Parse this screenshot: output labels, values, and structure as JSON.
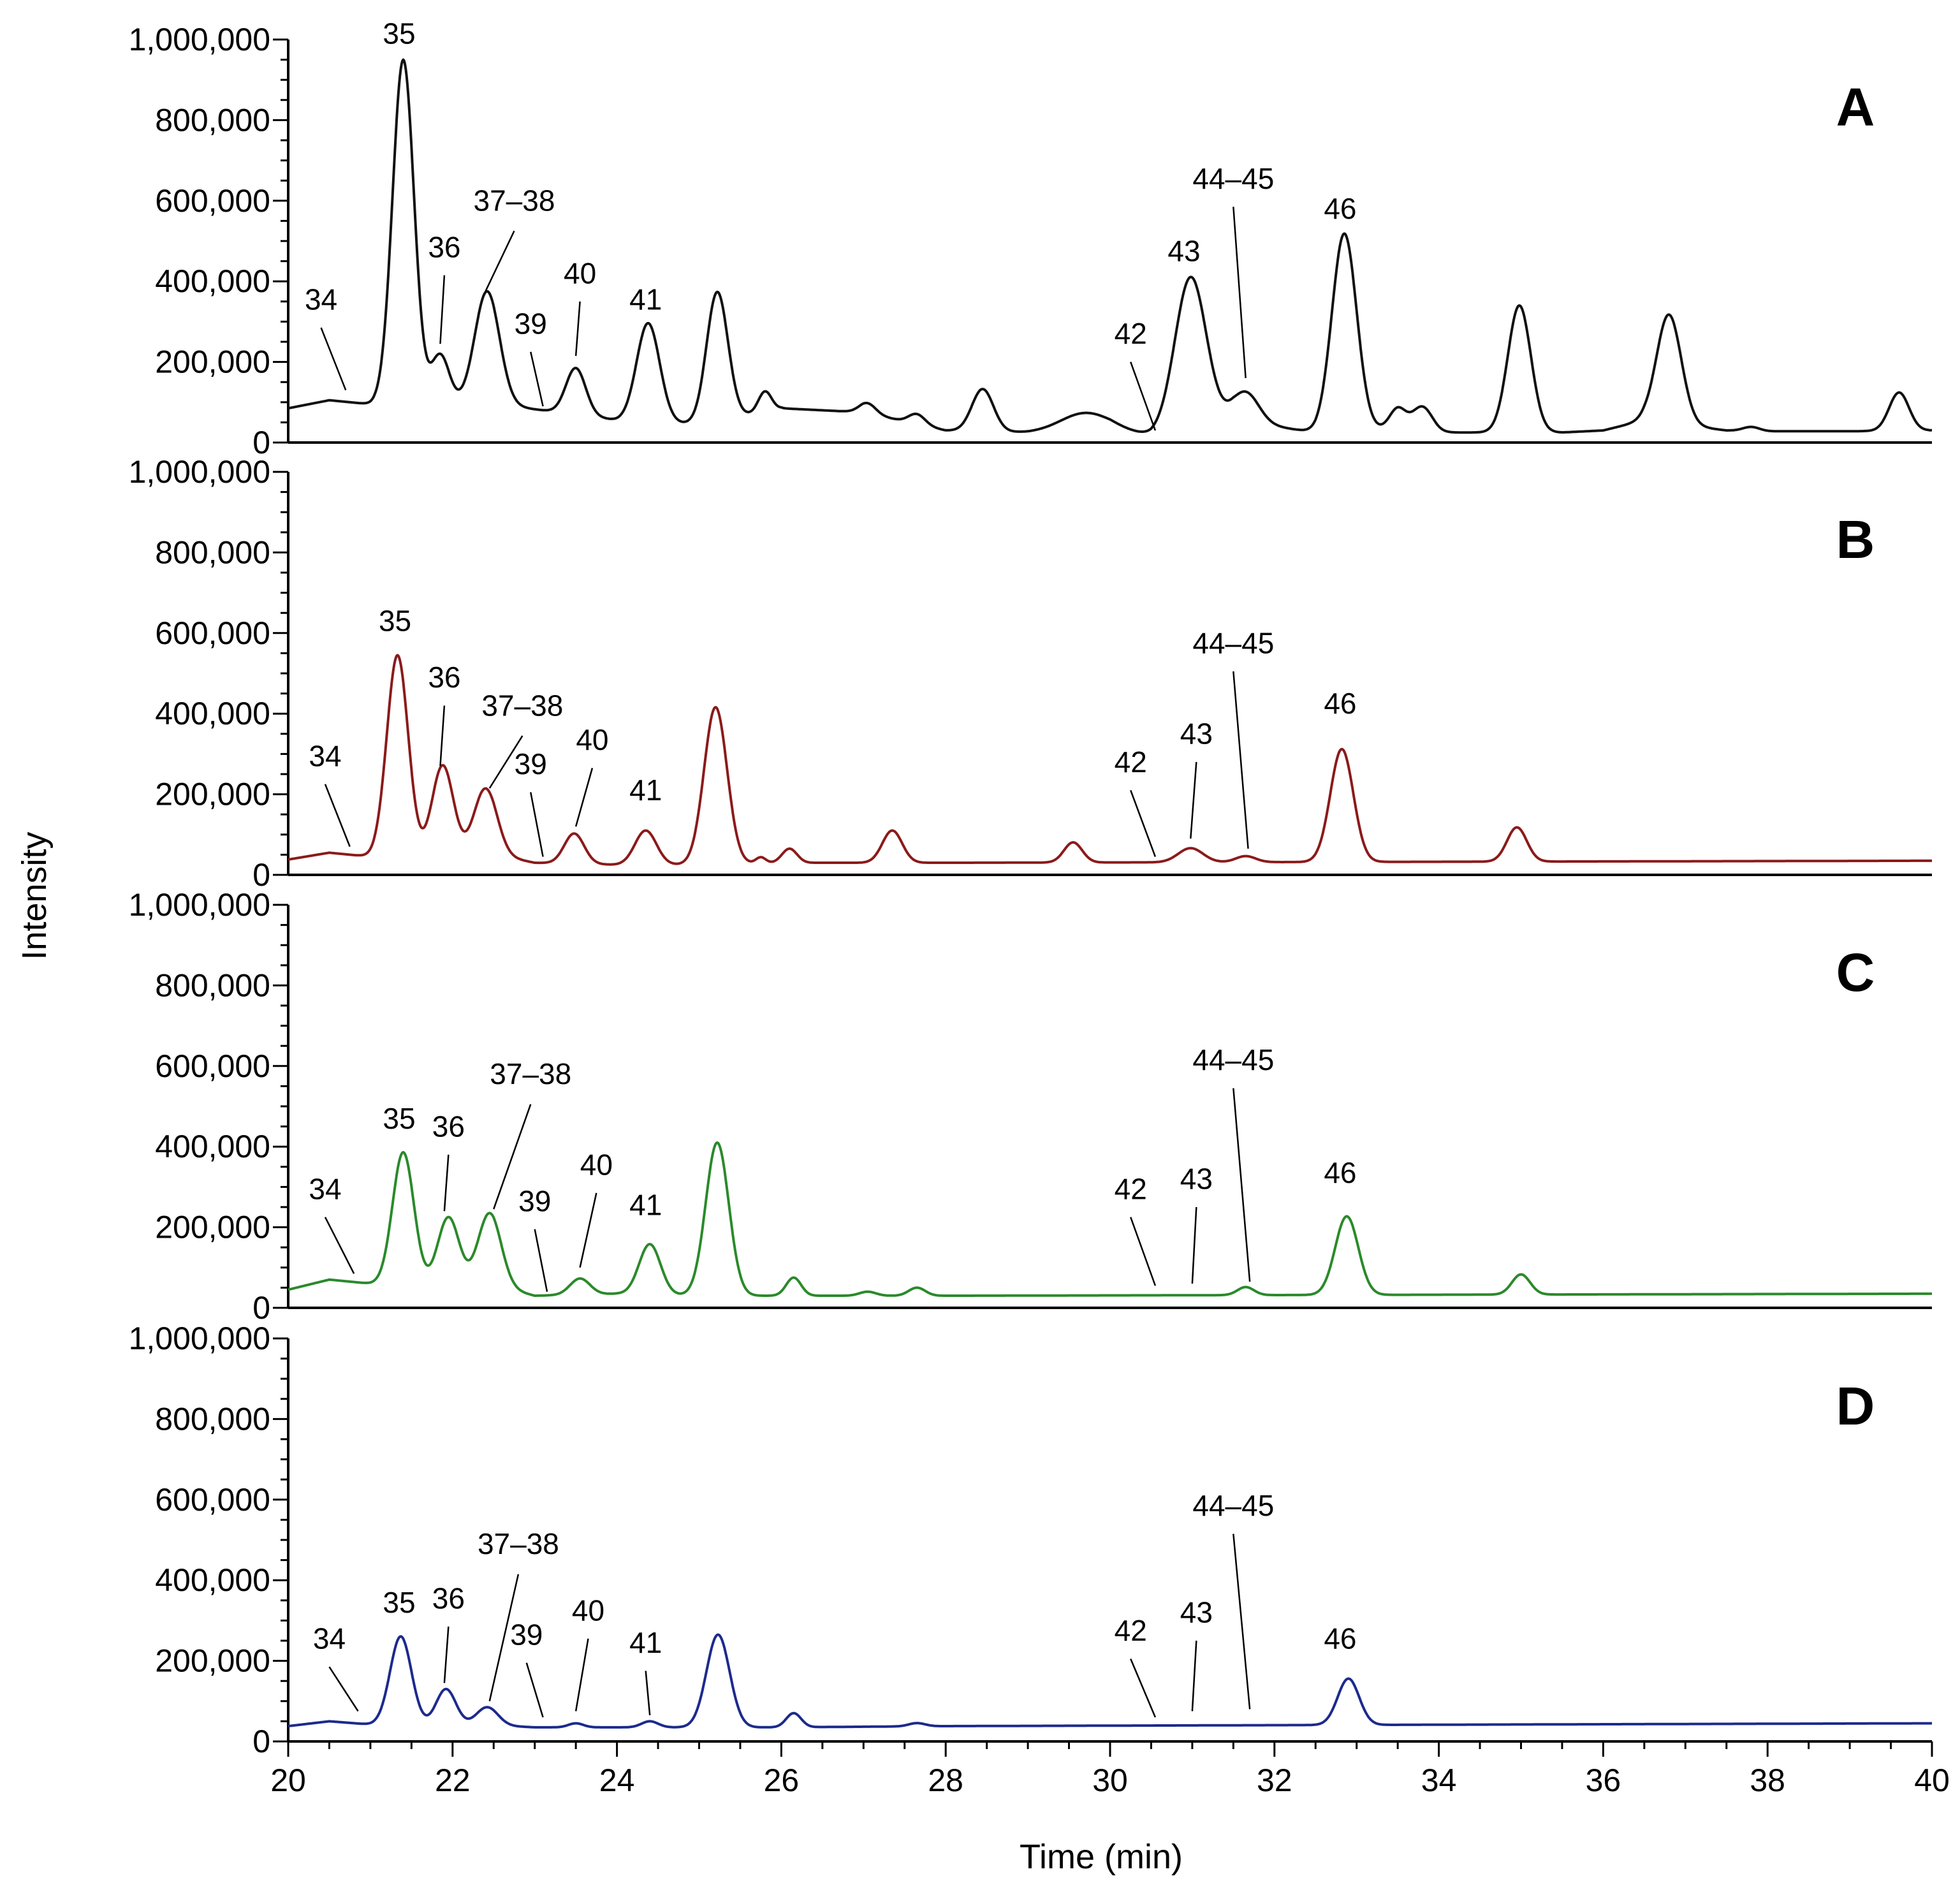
{
  "chart_data": {
    "type": "line",
    "xlabel": "Time (min)",
    "ylabel": "Intensity",
    "xlim": [
      20,
      40
    ],
    "x_ticks": [
      "20",
      "22",
      "24",
      "26",
      "28",
      "30",
      "32",
      "34",
      "36",
      "38",
      "40"
    ],
    "ylim": [
      0,
      1000000
    ],
    "y_ticks": [
      "0",
      "200,000",
      "400,000",
      "600,000",
      "800,000",
      "1,000,000"
    ],
    "panels": [
      {
        "id": "A",
        "color": "#111111",
        "baseline": [
          [
            20,
            85000
          ],
          [
            20.5,
            105000
          ],
          [
            21.0,
            95000
          ],
          [
            21.4,
            100000
          ],
          [
            22.5,
            95000
          ],
          [
            23.5,
            70000
          ],
          [
            24.0,
            55000
          ],
          [
            25.0,
            45000
          ],
          [
            26.0,
            85000
          ],
          [
            27.0,
            75000
          ],
          [
            28.0,
            30000
          ],
          [
            29.0,
            25000
          ],
          [
            30.0,
            30000
          ],
          [
            30.5,
            18000
          ],
          [
            31.5,
            55000
          ],
          [
            32.5,
            25000
          ],
          [
            33.5,
            35000
          ],
          [
            34.0,
            25000
          ],
          [
            35.5,
            25000
          ],
          [
            36.0,
            30000
          ],
          [
            36.5,
            55000
          ],
          [
            37.5,
            30000
          ],
          [
            38.0,
            28000
          ],
          [
            39.0,
            28000
          ],
          [
            40,
            30000
          ]
        ],
        "peaks": [
          [
            21.4,
            850000,
            0.13
          ],
          [
            21.85,
            120000,
            0.11
          ],
          [
            22.42,
            280000,
            0.15
          ],
          [
            23.5,
            115000,
            0.12
          ],
          [
            24.38,
            245000,
            0.14
          ],
          [
            25.22,
            320000,
            0.13
          ],
          [
            25.8,
            50000,
            0.08
          ],
          [
            27.05,
            25000,
            0.1
          ],
          [
            27.65,
            25000,
            0.1
          ],
          [
            28.45,
            105000,
            0.13
          ],
          [
            29.7,
            45000,
            0.3
          ],
          [
            30.98,
            375000,
            0.19
          ],
          [
            31.65,
            75000,
            0.16
          ],
          [
            32.85,
            490000,
            0.15
          ],
          [
            33.5,
            50000,
            0.1
          ],
          [
            33.8,
            60000,
            0.12
          ],
          [
            34.98,
            315000,
            0.14
          ],
          [
            36.8,
            270000,
            0.15
          ],
          [
            37.8,
            10000,
            0.1
          ],
          [
            39.6,
            95000,
            0.12
          ]
        ],
        "labels": [
          {
            "text": "34",
            "label_x": 20.4,
            "label_val": 330000,
            "line_from_val": 285000,
            "tip_x": 20.7,
            "tip_val": 130000
          },
          {
            "text": "35",
            "label_x": 21.35,
            "label_val": 990000,
            "line_from_val": null,
            "tip_x": 21.35,
            "tip_val": 990000
          },
          {
            "text": "36",
            "label_x": 21.9,
            "label_val": 460000,
            "line_from_val": 415000,
            "tip_x": 21.85,
            "tip_val": 245000
          },
          {
            "text": "37–38",
            "label_x": 22.75,
            "label_val": 575000,
            "line_from_val": 525000,
            "tip_x": 22.4,
            "tip_val": 375000
          },
          {
            "text": "39",
            "label_x": 22.95,
            "label_val": 270000,
            "line_from_val": 225000,
            "tip_x": 23.1,
            "tip_val": 90000
          },
          {
            "text": "40",
            "label_x": 23.55,
            "label_val": 395000,
            "line_from_val": 350000,
            "tip_x": 23.5,
            "tip_val": 215000
          },
          {
            "text": "41",
            "label_x": 24.35,
            "label_val": 330000,
            "line_from_val": null,
            "tip_x": 24.35,
            "tip_val": 330000
          },
          {
            "text": "42",
            "label_x": 30.25,
            "label_val": 245000,
            "line_from_val": 200000,
            "tip_x": 30.55,
            "tip_val": 30000
          },
          {
            "text": "43",
            "label_x": 30.9,
            "label_val": 450000,
            "line_from_val": null,
            "tip_x": 30.9,
            "tip_val": 450000
          },
          {
            "text": "44–45",
            "label_x": 31.5,
            "label_val": 630000,
            "line_from_val": 585000,
            "tip_x": 31.65,
            "tip_val": 160000
          },
          {
            "text": "46",
            "label_x": 32.8,
            "label_val": 555000,
            "line_from_val": null,
            "tip_x": 32.8,
            "tip_val": 555000
          }
        ]
      },
      {
        "id": "B",
        "color": "#8b1a1a",
        "baseline": [
          [
            20,
            38000
          ],
          [
            20.5,
            55000
          ],
          [
            21.0,
            45000
          ],
          [
            21.5,
            45000
          ],
          [
            22.5,
            50000
          ],
          [
            23.0,
            30000
          ],
          [
            24.0,
            25000
          ],
          [
            25.0,
            25000
          ],
          [
            26.0,
            30000
          ],
          [
            27.0,
            30000
          ],
          [
            28.0,
            30000
          ],
          [
            40,
            35000
          ]
        ],
        "peaks": [
          [
            21.33,
            500000,
            0.13
          ],
          [
            21.88,
            225000,
            0.13
          ],
          [
            22.4,
            165000,
            0.14
          ],
          [
            23.48,
            75000,
            0.12
          ],
          [
            24.35,
            85000,
            0.13
          ],
          [
            25.2,
            390000,
            0.14
          ],
          [
            25.75,
            15000,
            0.06
          ],
          [
            26.1,
            35000,
            0.09
          ],
          [
            27.35,
            80000,
            0.12
          ],
          [
            29.55,
            50000,
            0.11
          ],
          [
            30.98,
            35000,
            0.15
          ],
          [
            31.65,
            15000,
            0.12
          ],
          [
            32.82,
            280000,
            0.14
          ],
          [
            34.95,
            85000,
            0.12
          ]
        ],
        "labels": [
          {
            "text": "34",
            "label_x": 20.45,
            "label_val": 270000,
            "line_from_val": 225000,
            "tip_x": 20.75,
            "tip_val": 70000
          },
          {
            "text": "35",
            "label_x": 21.3,
            "label_val": 605000,
            "line_from_val": null,
            "tip_x": 21.3,
            "tip_val": 605000
          },
          {
            "text": "36",
            "label_x": 21.9,
            "label_val": 465000,
            "line_from_val": 420000,
            "tip_x": 21.85,
            "tip_val": 270000
          },
          {
            "text": "37–38",
            "label_x": 22.85,
            "label_val": 395000,
            "line_from_val": 345000,
            "tip_x": 22.45,
            "tip_val": 215000
          },
          {
            "text": "39",
            "label_x": 22.95,
            "label_val": 250000,
            "line_from_val": 205000,
            "tip_x": 23.1,
            "tip_val": 45000
          },
          {
            "text": "40",
            "label_x": 23.7,
            "label_val": 310000,
            "line_from_val": 265000,
            "tip_x": 23.5,
            "tip_val": 120000
          },
          {
            "text": "41",
            "label_x": 24.35,
            "label_val": 185000,
            "line_from_val": null,
            "tip_x": 24.35,
            "tip_val": 185000
          },
          {
            "text": "42",
            "label_x": 30.25,
            "label_val": 255000,
            "line_from_val": 210000,
            "tip_x": 30.55,
            "tip_val": 45000
          },
          {
            "text": "43",
            "label_x": 31.05,
            "label_val": 325000,
            "line_from_val": 280000,
            "tip_x": 30.98,
            "tip_val": 90000
          },
          {
            "text": "44–45",
            "label_x": 31.5,
            "label_val": 550000,
            "line_from_val": 505000,
            "tip_x": 31.68,
            "tip_val": 65000
          },
          {
            "text": "46",
            "label_x": 32.8,
            "label_val": 400000,
            "line_from_val": null,
            "tip_x": 32.8,
            "tip_val": 400000
          }
        ]
      },
      {
        "id": "C",
        "color": "#2a8a2a",
        "baseline": [
          [
            20,
            45000
          ],
          [
            20.5,
            70000
          ],
          [
            21.0,
            60000
          ],
          [
            21.5,
            55000
          ],
          [
            22.5,
            55000
          ],
          [
            23.0,
            30000
          ],
          [
            24.0,
            35000
          ],
          [
            25.0,
            30000
          ],
          [
            26.0,
            30000
          ],
          [
            28.0,
            30000
          ],
          [
            40,
            35000
          ]
        ],
        "peaks": [
          [
            21.4,
            330000,
            0.13
          ],
          [
            21.95,
            170000,
            0.13
          ],
          [
            22.45,
            180000,
            0.14
          ],
          [
            23.55,
            40000,
            0.12
          ],
          [
            24.4,
            125000,
            0.13
          ],
          [
            25.22,
            380000,
            0.14
          ],
          [
            26.15,
            45000,
            0.09
          ],
          [
            27.05,
            10000,
            0.1
          ],
          [
            27.65,
            20000,
            0.1
          ],
          [
            31.65,
            20000,
            0.1
          ],
          [
            32.88,
            195000,
            0.14
          ],
          [
            35.0,
            50000,
            0.11
          ]
        ],
        "labels": [
          {
            "text": "34",
            "label_x": 20.45,
            "label_val": 270000,
            "line_from_val": 225000,
            "tip_x": 20.8,
            "tip_val": 85000
          },
          {
            "text": "35",
            "label_x": 21.35,
            "label_val": 445000,
            "line_from_val": null,
            "tip_x": 21.35,
            "tip_val": 445000
          },
          {
            "text": "36",
            "label_x": 21.95,
            "label_val": 425000,
            "line_from_val": 380000,
            "tip_x": 21.9,
            "tip_val": 240000
          },
          {
            "text": "37–38",
            "label_x": 22.95,
            "label_val": 555000,
            "line_from_val": 505000,
            "tip_x": 22.5,
            "tip_val": 245000
          },
          {
            "text": "39",
            "label_x": 23.0,
            "label_val": 240000,
            "line_from_val": 195000,
            "tip_x": 23.15,
            "tip_val": 40000
          },
          {
            "text": "40",
            "label_x": 23.75,
            "label_val": 330000,
            "line_from_val": 285000,
            "tip_x": 23.55,
            "tip_val": 100000
          },
          {
            "text": "41",
            "label_x": 24.35,
            "label_val": 230000,
            "line_from_val": null,
            "tip_x": 24.35,
            "tip_val": 230000
          },
          {
            "text": "42",
            "label_x": 30.25,
            "label_val": 270000,
            "line_from_val": 225000,
            "tip_x": 30.55,
            "tip_val": 55000
          },
          {
            "text": "43",
            "label_x": 31.05,
            "label_val": 295000,
            "line_from_val": 250000,
            "tip_x": 31.0,
            "tip_val": 60000
          },
          {
            "text": "44–45",
            "label_x": 31.5,
            "label_val": 590000,
            "line_from_val": 545000,
            "tip_x": 31.7,
            "tip_val": 65000
          },
          {
            "text": "46",
            "label_x": 32.8,
            "label_val": 310000,
            "line_from_val": null,
            "tip_x": 32.8,
            "tip_val": 310000
          }
        ]
      },
      {
        "id": "D",
        "color": "#1c2a8c",
        "baseline": [
          [
            20,
            38000
          ],
          [
            20.5,
            50000
          ],
          [
            21.0,
            42000
          ],
          [
            21.5,
            40000
          ],
          [
            22.5,
            40000
          ],
          [
            23.0,
            35000
          ],
          [
            24.0,
            35000
          ],
          [
            25.0,
            35000
          ],
          [
            26.0,
            35000
          ],
          [
            28.0,
            38000
          ],
          [
            40,
            45000
          ]
        ],
        "peaks": [
          [
            21.37,
            220000,
            0.13
          ],
          [
            21.92,
            90000,
            0.12
          ],
          [
            22.42,
            45000,
            0.13
          ],
          [
            23.5,
            10000,
            0.09
          ],
          [
            24.4,
            15000,
            0.1
          ],
          [
            25.23,
            230000,
            0.14
          ],
          [
            26.15,
            35000,
            0.09
          ],
          [
            27.65,
            8000,
            0.1
          ],
          [
            32.9,
            115000,
            0.13
          ]
        ],
        "labels": [
          {
            "text": "34",
            "label_x": 20.5,
            "label_val": 230000,
            "line_from_val": 185000,
            "tip_x": 20.85,
            "tip_val": 75000
          },
          {
            "text": "35",
            "label_x": 21.35,
            "label_val": 320000,
            "line_from_val": null,
            "tip_x": 21.35,
            "tip_val": 320000
          },
          {
            "text": "36",
            "label_x": 21.95,
            "label_val": 330000,
            "line_from_val": 285000,
            "tip_x": 21.9,
            "tip_val": 145000
          },
          {
            "text": "37–38",
            "label_x": 22.8,
            "label_val": 465000,
            "line_from_val": 415000,
            "tip_x": 22.45,
            "tip_val": 100000
          },
          {
            "text": "39",
            "label_x": 22.9,
            "label_val": 240000,
            "line_from_val": 195000,
            "tip_x": 23.1,
            "tip_val": 60000
          },
          {
            "text": "40",
            "label_x": 23.65,
            "label_val": 300000,
            "line_from_val": 255000,
            "tip_x": 23.5,
            "tip_val": 75000
          },
          {
            "text": "41",
            "label_x": 24.35,
            "label_val": 220000,
            "line_from_val": 175000,
            "tip_x": 24.4,
            "tip_val": 65000
          },
          {
            "text": "42",
            "label_x": 30.25,
            "label_val": 250000,
            "line_from_val": 205000,
            "tip_x": 30.55,
            "tip_val": 60000
          },
          {
            "text": "43",
            "label_x": 31.05,
            "label_val": 295000,
            "line_from_val": 250000,
            "tip_x": 31.0,
            "tip_val": 75000
          },
          {
            "text": "44–45",
            "label_x": 31.5,
            "label_val": 560000,
            "line_from_val": 515000,
            "tip_x": 31.7,
            "tip_val": 80000
          },
          {
            "text": "46",
            "label_x": 32.8,
            "label_val": 230000,
            "line_from_val": null,
            "tip_x": 32.8,
            "tip_val": 230000
          }
        ]
      }
    ]
  }
}
